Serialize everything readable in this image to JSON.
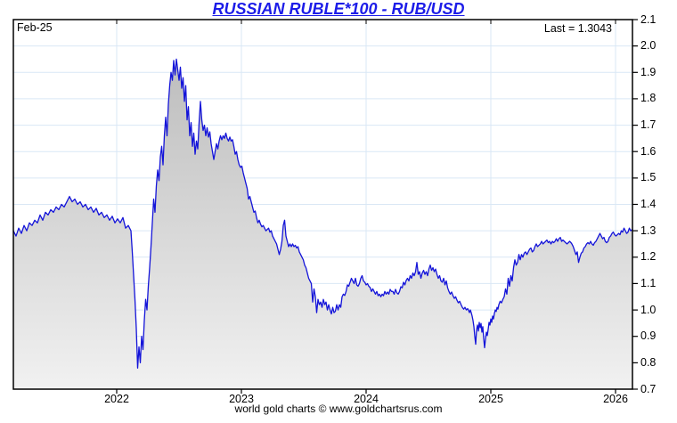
{
  "header": {
    "title": "RUSSIAN RUBLE*100 - RUB/USD"
  },
  "plot": {
    "date_label": "Feb-25",
    "last_label": "Last = 1.3043"
  },
  "footer": {
    "credit": "world gold charts © www.goldchartsrus.com"
  },
  "chart_data": {
    "type": "area",
    "title": "RUSSIAN RUBLE*100 - RUB/USD",
    "last_value": 1.3043,
    "legend": "none",
    "grid": true,
    "x_axis": {
      "label": "",
      "ticks": [
        2022,
        2023,
        2024,
        2025,
        2026
      ],
      "tick_labels": [
        "2022",
        "2023",
        "2024",
        "2025",
        "2026"
      ],
      "range": [
        2021.1714,
        2026.1357
      ]
    },
    "y_axis": {
      "label": "",
      "side": "right",
      "ticks": [
        0.7,
        0.8,
        0.9,
        1.0,
        1.1,
        1.2,
        1.3,
        1.4,
        1.5,
        1.6,
        1.7,
        1.8,
        1.9,
        2.0,
        2.1
      ],
      "tick_labels": [
        "0.7",
        "0.8",
        "0.9",
        "1.0",
        "1.1",
        "1.2",
        "1.3",
        "1.4",
        "1.5",
        "1.6",
        "1.7",
        "1.8",
        "1.9",
        "2.0",
        "2.1"
      ],
      "range": [
        0.7,
        2.1
      ]
    },
    "colors": {
      "line": "#1414d9",
      "title": "#1c1ce8",
      "grid": "#d9e7f5",
      "fill_top": "#bdbdbd",
      "fill_bottom": "#f1f1f1",
      "border": "#000000"
    },
    "series": [
      {
        "name": "RUB/USD x100",
        "segments": [
          {
            "start_year": 2021.1714,
            "step_year": 0.021429,
            "values": [
              1.3,
              1.28,
              1.31,
              1.29,
              1.32,
              1.3,
              1.33,
              1.32,
              1.34,
              1.33,
              1.36,
              1.34,
              1.37,
              1.36,
              1.38,
              1.37,
              1.39,
              1.38,
              1.4,
              1.39,
              1.41,
              1.43,
              1.41,
              1.42,
              1.4,
              1.41,
              1.39,
              1.4,
              1.38,
              1.39,
              1.37,
              1.385,
              1.36,
              1.37,
              1.35,
              1.36,
              1.34,
              1.355,
              1.33,
              1.345,
              1.33,
              1.35,
              1.31,
              1.32,
              1.3
            ]
          },
          {
            "start_year": 2022.125,
            "step_year": 0.010714,
            "values": [
              1.22,
              1.13,
              1.04,
              0.93,
              0.78,
              0.86,
              0.8,
              0.9,
              0.85,
              0.96,
              1.04,
              1.0,
              1.09,
              1.16,
              1.24,
              1.33,
              1.42,
              1.37,
              1.47,
              1.53,
              1.49,
              1.58,
              1.62,
              1.55,
              1.66,
              1.73,
              1.66,
              1.78,
              1.85,
              1.9,
              1.87,
              1.945
            ]
          },
          {
            "start_year": 2022.4679,
            "step_year": 0.010714,
            "values": [
              1.89,
              1.95,
              1.91,
              1.87,
              1.92,
              1.84,
              1.88,
              1.79,
              1.85,
              1.72,
              1.77,
              1.66,
              1.71,
              1.62,
              1.67,
              1.59,
              1.64,
              1.61,
              1.71,
              1.79,
              1.72,
              1.68,
              1.7,
              1.66,
              1.69,
              1.655,
              1.675,
              1.63,
              1.6,
              1.57,
              1.6,
              1.63,
              1.61,
              1.64,
              1.66,
              1.645,
              1.66,
              1.65,
              1.67,
              1.65,
              1.64,
              1.655,
              1.64,
              1.645
            ]
          },
          {
            "start_year": 2022.9393,
            "step_year": 0.010714,
            "values": [
              1.62,
              1.59,
              1.6,
              1.57,
              1.55,
              1.54,
              1.545,
              1.52,
              1.5,
              1.48,
              1.46,
              1.42,
              1.43,
              1.41,
              1.39,
              1.37,
              1.375,
              1.35,
              1.33,
              1.34,
              1.325,
              1.315,
              1.32,
              1.31,
              1.3,
              1.305,
              1.31,
              1.295,
              1.3,
              1.28,
              1.27,
              1.26,
              1.25,
              1.23,
              1.21,
              1.23,
              1.26,
              1.32,
              1.34,
              1.28,
              1.26,
              1.24,
              1.25,
              1.24,
              1.25,
              1.24,
              1.245,
              1.235,
              1.24,
              1.22,
              1.21,
              1.2,
              1.19,
              1.17,
              1.16,
              1.14,
              1.12,
              1.11
            ]
          },
          {
            "start_year": 2023.5607,
            "step_year": 0.010714,
            "values": [
              1.1,
              1.03,
              1.08,
              1.05,
              0.99,
              1.04,
              1.02,
              1.03,
              1.01,
              1.04,
              1.02,
              1.03,
              1.0,
              1.02,
              1.0,
              0.985,
              1.01,
              0.99,
              0.995,
              1.02,
              1.0,
              1.02,
              1.01,
              1.05,
              1.06,
              1.055,
              1.07,
              1.095,
              1.09,
              1.105,
              1.12,
              1.11,
              1.1,
              1.12,
              1.095,
              1.09,
              1.1,
              1.12,
              1.13,
              1.11,
              1.105,
              1.095,
              1.1,
              1.09,
              1.085,
              1.07,
              1.08,
              1.07,
              1.06,
              1.07,
              1.054,
              1.06,
              1.05,
              1.06,
              1.054,
              1.07,
              1.06,
              1.068,
              1.06,
              1.078,
              1.07
            ]
          },
          {
            "start_year": 2024.2143,
            "step_year": 0.010714,
            "values": [
              1.07,
              1.06,
              1.078,
              1.065,
              1.06,
              1.07,
              1.088,
              1.084,
              1.105,
              1.095,
              1.112,
              1.12,
              1.11,
              1.13,
              1.12,
              1.14,
              1.13,
              1.145,
              1.18,
              1.135,
              1.145,
              1.12,
              1.14,
              1.15,
              1.135,
              1.145,
              1.13,
              1.155,
              1.17,
              1.15,
              1.16,
              1.145,
              1.155,
              1.135,
              1.12,
              1.13,
              1.11,
              1.105,
              1.12,
              1.095,
              1.11,
              1.084,
              1.07,
              1.06,
              1.068,
              1.054,
              1.044,
              1.05,
              1.037,
              1.027,
              1.033,
              1.021,
              1.01,
              1.003,
              1.01,
              1.0,
              1.005
            ]
          },
          {
            "start_year": 2024.8214,
            "step_year": 0.0071429,
            "values": [
              0.998,
              0.99,
              1.0,
              0.99,
              0.977,
              0.96,
              0.937,
              0.9,
              0.87,
              0.925,
              0.943,
              0.92,
              0.953,
              0.933,
              0.949,
              0.916,
              0.937,
              0.892,
              0.857,
              0.89,
              0.916,
              0.903,
              0.926,
              0.953,
              0.943,
              0.966,
              0.953,
              0.977,
              0.966,
              0.987,
              1.0,
              0.994,
              1.01,
              1.003,
              1.02
            ]
          },
          {
            "start_year": 2025.075,
            "step_year": 0.010714,
            "values": [
              1.033,
              1.027,
              1.04,
              1.05,
              1.08,
              1.06,
              1.12,
              1.09,
              1.13,
              1.11,
              1.16,
              1.19,
              1.17,
              1.18,
              1.21,
              1.19,
              1.21,
              1.2,
              1.215,
              1.22,
              1.21,
              1.22,
              1.23,
              1.235,
              1.22,
              1.225,
              1.24,
              1.25,
              1.24,
              1.245,
              1.25,
              1.26,
              1.25,
              1.255,
              1.26,
              1.265,
              1.255,
              1.26,
              1.25,
              1.26,
              1.255,
              1.26,
              1.27,
              1.26,
              1.27,
              1.275,
              1.26,
              1.265,
              1.26,
              1.255,
              1.25,
              1.255,
              1.26,
              1.255
            ]
          },
          {
            "start_year": 2025.65,
            "step_year": 0.010714,
            "values": [
              1.25,
              1.24,
              1.225,
              1.21,
              1.22,
              1.18,
              1.2,
              1.215,
              1.22,
              1.235,
              1.24,
              1.25,
              1.255,
              1.25,
              1.26,
              1.25,
              1.245,
              1.255,
              1.26,
              1.27,
              1.28,
              1.29,
              1.28,
              1.27,
              1.275,
              1.26,
              1.255,
              1.26,
              1.275,
              1.28,
              1.29,
              1.295,
              1.285,
              1.28,
              1.285,
              1.29,
              1.285,
              1.3,
              1.295,
              1.31,
              1.3,
              1.29,
              1.295,
              1.31,
              1.3,
              1.3043
            ]
          }
        ]
      }
    ]
  }
}
